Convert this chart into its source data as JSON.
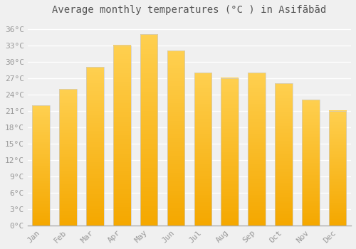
{
  "title": "Average monthly temperatures (°C ) in Asifābād",
  "months": [
    "Jan",
    "Feb",
    "Mar",
    "Apr",
    "May",
    "Jun",
    "Jul",
    "Aug",
    "Sep",
    "Oct",
    "Nov",
    "Dec"
  ],
  "temperatures": [
    22,
    25,
    29,
    33,
    35,
    32,
    28,
    27,
    28,
    26,
    23,
    21
  ],
  "bar_color_top": "#FFD050",
  "bar_color_bottom": "#F5A800",
  "bar_edge_color": "#CCCCCC",
  "background_color": "#F0F0F0",
  "plot_bg_color": "#F0F0F0",
  "grid_color": "#FFFFFF",
  "yticks": [
    0,
    3,
    6,
    9,
    12,
    15,
    18,
    21,
    24,
    27,
    30,
    33,
    36
  ],
  "ylim": [
    0,
    37.5
  ],
  "ylabel_suffix": "°C",
  "title_fontsize": 10,
  "tick_fontsize": 8,
  "axis_color": "#999999",
  "spine_color": "#AAAAAA"
}
